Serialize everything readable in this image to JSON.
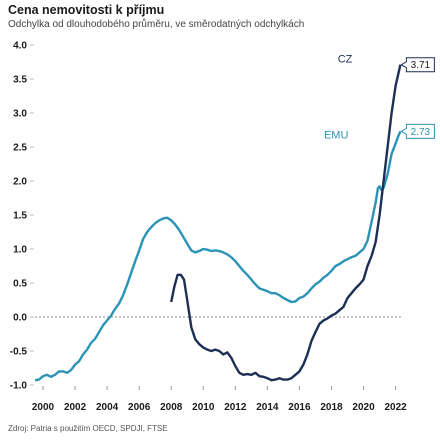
{
  "chart_data": {
    "type": "line",
    "title": "Cena nemovitosti k příjmu",
    "subtitle": "Odchylka od dlouhodobého průměru, ve směrodatných odchylkách",
    "source": "Zdroj: Patria s použitím OECD, SPDJI, FTSE",
    "xlabel": "",
    "ylabel": "",
    "xlim": [
      1999.5,
      2022.4
    ],
    "ylim": [
      -1.05,
      4.0
    ],
    "x_ticks": [
      2000,
      2002,
      2004,
      2006,
      2008,
      2010,
      2012,
      2014,
      2016,
      2018,
      2020,
      2022
    ],
    "x_tick_labels": [
      "2000",
      "2002",
      "2004",
      "2006",
      "2008",
      "2010",
      "2012",
      "2014",
      "2016",
      "2018",
      "2020",
      "2022"
    ],
    "y_ticks": [
      -1.0,
      -0.5,
      0.0,
      0.5,
      1.0,
      1.5,
      2.0,
      2.5,
      3.0,
      3.5,
      4.0
    ],
    "y_tick_labels": [
      "-1.0",
      "-0.5",
      "0.0",
      "0.5",
      "1.0",
      "1.5",
      "2.0",
      "2.5",
      "3.0",
      "3.5",
      "4.0"
    ],
    "zero_line": true,
    "grid": false,
    "legend": "none",
    "series": [
      {
        "name": "EMU",
        "color": "#2b94b6",
        "end_value_label": "2.73",
        "points": [
          [
            1999.5,
            -0.93
          ],
          [
            1999.75,
            -0.92
          ],
          [
            2000.0,
            -0.87
          ],
          [
            2000.25,
            -0.85
          ],
          [
            2000.5,
            -0.88
          ],
          [
            2000.75,
            -0.85
          ],
          [
            2001.0,
            -0.8
          ],
          [
            2001.25,
            -0.8
          ],
          [
            2001.5,
            -0.82
          ],
          [
            2001.75,
            -0.78
          ],
          [
            2002.0,
            -0.7
          ],
          [
            2002.25,
            -0.65
          ],
          [
            2002.5,
            -0.55
          ],
          [
            2002.75,
            -0.48
          ],
          [
            2003.0,
            -0.38
          ],
          [
            2003.25,
            -0.32
          ],
          [
            2003.5,
            -0.22
          ],
          [
            2003.75,
            -0.12
          ],
          [
            2004.0,
            -0.05
          ],
          [
            2004.25,
            0.02
          ],
          [
            2004.5,
            0.12
          ],
          [
            2004.75,
            0.2
          ],
          [
            2005.0,
            0.32
          ],
          [
            2005.25,
            0.48
          ],
          [
            2005.5,
            0.65
          ],
          [
            2005.75,
            0.82
          ],
          [
            2006.0,
            0.98
          ],
          [
            2006.25,
            1.15
          ],
          [
            2006.5,
            1.25
          ],
          [
            2006.75,
            1.32
          ],
          [
            2007.0,
            1.38
          ],
          [
            2007.25,
            1.42
          ],
          [
            2007.5,
            1.45
          ],
          [
            2007.75,
            1.46
          ],
          [
            2008.0,
            1.42
          ],
          [
            2008.25,
            1.36
          ],
          [
            2008.5,
            1.28
          ],
          [
            2008.75,
            1.18
          ],
          [
            2009.0,
            1.08
          ],
          [
            2009.25,
            0.98
          ],
          [
            2009.5,
            0.95
          ],
          [
            2009.75,
            0.97
          ],
          [
            2010.0,
            1.0
          ],
          [
            2010.25,
            0.99
          ],
          [
            2010.5,
            0.97
          ],
          [
            2010.75,
            0.98
          ],
          [
            2011.0,
            0.97
          ],
          [
            2011.25,
            0.95
          ],
          [
            2011.5,
            0.92
          ],
          [
            2011.75,
            0.88
          ],
          [
            2012.0,
            0.82
          ],
          [
            2012.25,
            0.75
          ],
          [
            2012.5,
            0.68
          ],
          [
            2012.75,
            0.62
          ],
          [
            2013.0,
            0.55
          ],
          [
            2013.25,
            0.48
          ],
          [
            2013.5,
            0.42
          ],
          [
            2013.75,
            0.4
          ],
          [
            2014.0,
            0.38
          ],
          [
            2014.25,
            0.35
          ],
          [
            2014.5,
            0.35
          ],
          [
            2014.75,
            0.32
          ],
          [
            2015.0,
            0.28
          ],
          [
            2015.25,
            0.25
          ],
          [
            2015.5,
            0.22
          ],
          [
            2015.75,
            0.23
          ],
          [
            2016.0,
            0.28
          ],
          [
            2016.25,
            0.3
          ],
          [
            2016.5,
            0.35
          ],
          [
            2016.75,
            0.42
          ],
          [
            2017.0,
            0.48
          ],
          [
            2017.25,
            0.52
          ],
          [
            2017.5,
            0.58
          ],
          [
            2017.75,
            0.62
          ],
          [
            2018.0,
            0.68
          ],
          [
            2018.25,
            0.75
          ],
          [
            2018.5,
            0.78
          ],
          [
            2018.75,
            0.82
          ],
          [
            2019.0,
            0.85
          ],
          [
            2019.25,
            0.88
          ],
          [
            2019.5,
            0.9
          ],
          [
            2019.75,
            0.95
          ],
          [
            2020.0,
            1.0
          ],
          [
            2020.25,
            1.12
          ],
          [
            2020.5,
            1.4
          ],
          [
            2020.75,
            1.68
          ],
          [
            2020.9,
            1.9
          ],
          [
            2021.0,
            1.92
          ],
          [
            2021.1,
            1.87
          ],
          [
            2021.25,
            1.9
          ],
          [
            2021.5,
            2.1
          ],
          [
            2021.75,
            2.4
          ],
          [
            2022.0,
            2.55
          ],
          [
            2022.15,
            2.65
          ],
          [
            2022.3,
            2.73
          ]
        ]
      },
      {
        "name": "CZ",
        "color": "#1c2f55",
        "end_value_label": "3.71",
        "points": [
          [
            2008.0,
            0.22
          ],
          [
            2008.2,
            0.45
          ],
          [
            2008.4,
            0.62
          ],
          [
            2008.6,
            0.62
          ],
          [
            2008.8,
            0.55
          ],
          [
            2009.0,
            0.25
          ],
          [
            2009.25,
            -0.15
          ],
          [
            2009.5,
            -0.33
          ],
          [
            2009.75,
            -0.4
          ],
          [
            2010.0,
            -0.45
          ],
          [
            2010.25,
            -0.48
          ],
          [
            2010.5,
            -0.5
          ],
          [
            2010.75,
            -0.48
          ],
          [
            2011.0,
            -0.5
          ],
          [
            2011.25,
            -0.55
          ],
          [
            2011.5,
            -0.52
          ],
          [
            2011.75,
            -0.6
          ],
          [
            2012.0,
            -0.72
          ],
          [
            2012.25,
            -0.82
          ],
          [
            2012.5,
            -0.85
          ],
          [
            2012.75,
            -0.84
          ],
          [
            2013.0,
            -0.85
          ],
          [
            2013.25,
            -0.82
          ],
          [
            2013.5,
            -0.87
          ],
          [
            2013.75,
            -0.88
          ],
          [
            2014.0,
            -0.9
          ],
          [
            2014.25,
            -0.93
          ],
          [
            2014.5,
            -0.92
          ],
          [
            2014.75,
            -0.9
          ],
          [
            2015.0,
            -0.92
          ],
          [
            2015.25,
            -0.92
          ],
          [
            2015.5,
            -0.9
          ],
          [
            2015.75,
            -0.85
          ],
          [
            2016.0,
            -0.8
          ],
          [
            2016.25,
            -0.7
          ],
          [
            2016.5,
            -0.55
          ],
          [
            2016.75,
            -0.35
          ],
          [
            2017.0,
            -0.22
          ],
          [
            2017.25,
            -0.1
          ],
          [
            2017.5,
            -0.05
          ],
          [
            2017.75,
            -0.02
          ],
          [
            2018.0,
            0.02
          ],
          [
            2018.25,
            0.05
          ],
          [
            2018.5,
            0.1
          ],
          [
            2018.75,
            0.15
          ],
          [
            2019.0,
            0.28
          ],
          [
            2019.25,
            0.35
          ],
          [
            2019.5,
            0.42
          ],
          [
            2019.75,
            0.48
          ],
          [
            2020.0,
            0.55
          ],
          [
            2020.25,
            0.75
          ],
          [
            2020.5,
            0.9
          ],
          [
            2020.75,
            1.1
          ],
          [
            2021.0,
            1.5
          ],
          [
            2021.25,
            2.0
          ],
          [
            2021.5,
            2.5
          ],
          [
            2021.75,
            3.0
          ],
          [
            2022.0,
            3.4
          ],
          [
            2022.3,
            3.71
          ]
        ]
      }
    ]
  }
}
